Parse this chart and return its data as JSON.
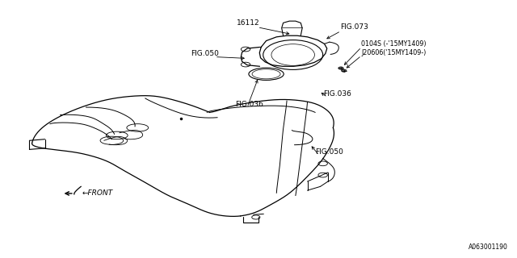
{
  "background_color": "#ffffff",
  "line_color": "#000000",
  "text_color": "#000000",
  "fig_size": [
    6.4,
    3.2
  ],
  "dpi": 100,
  "label_16112": "16112",
  "label_fig073": "FIG.073",
  "label_0104S": "0104S (-'15MY1409)",
  "label_J20606": "J20606('15MY1409-)",
  "label_fig050_up": "FIG.050",
  "label_fig036_lo": "FIG.036",
  "label_fig036_up": "FIG.036",
  "label_fig050_lo": "FIG.050",
  "label_front": "←FRONT",
  "label_id": "A063001190"
}
